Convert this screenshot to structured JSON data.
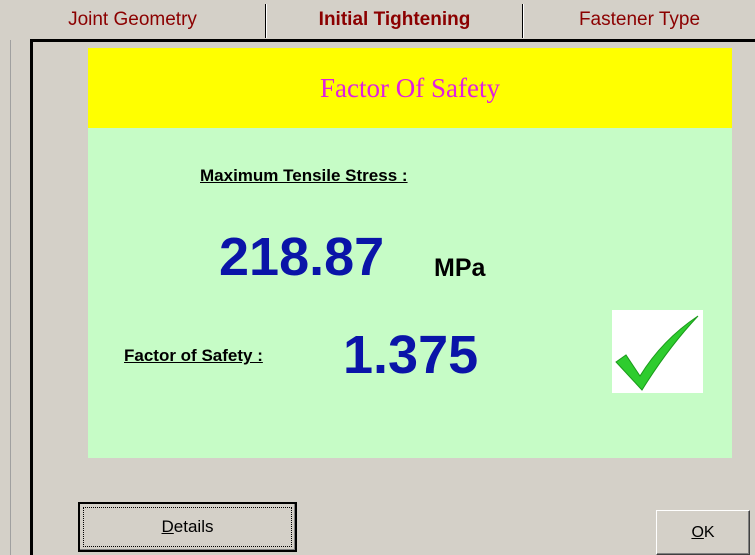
{
  "tabs": [
    "Joint Geometry",
    "Initial Tightening",
    "Fastener Type"
  ],
  "active_tab": 1,
  "panel": {
    "title": "Factor Of Safety",
    "stress_label": "Maximum Tensile Stress :",
    "stress_value": 218.87,
    "stress_unit": "MPa",
    "safety_label": "Factor of Safety :",
    "safety_value": 1.375
  },
  "buttons": [
    "Details",
    "OK"
  ]
}
